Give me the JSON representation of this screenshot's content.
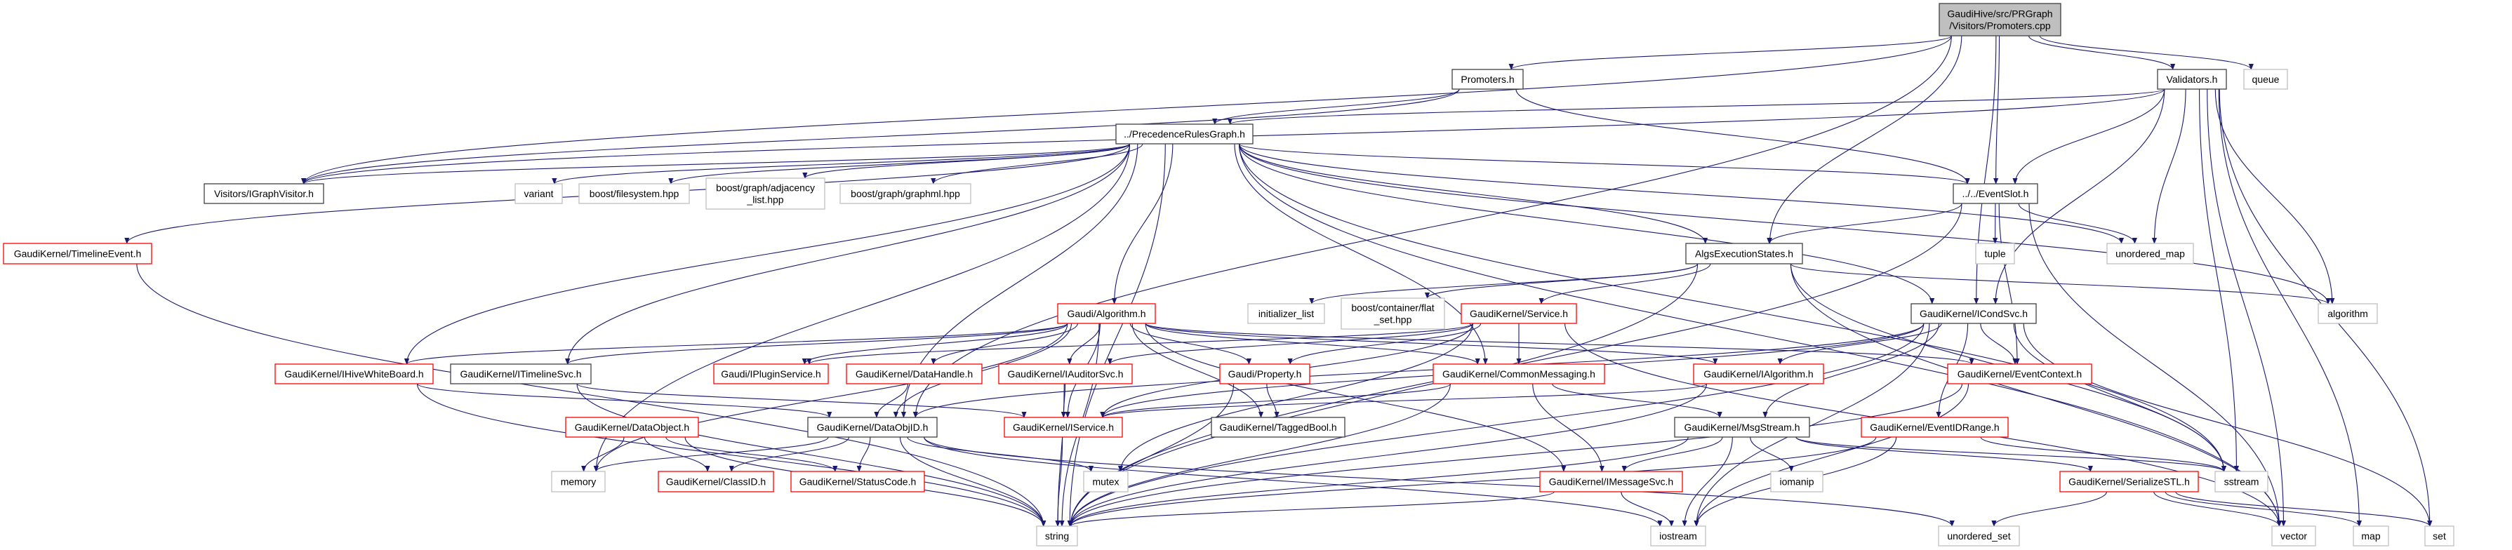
{
  "colors": {
    "edge": "#191970",
    "root_fill": "#bfbfbf",
    "truncated_border": "#ff0000",
    "documented_border": "#404040",
    "system_border": "#bfbfbf"
  },
  "nodes": [
    {
      "id": "root",
      "lines": [
        "GaudiHive/src/PRGraph",
        "/Visitors/Promoters.cpp"
      ],
      "kind": "root"
    },
    {
      "id": "promoters",
      "lines": [
        "Promoters.h"
      ],
      "kind": "doc"
    },
    {
      "id": "validators",
      "lines": [
        "Validators.h"
      ],
      "kind": "doc"
    },
    {
      "id": "queue",
      "lines": [
        "queue"
      ],
      "kind": "sys"
    },
    {
      "id": "prg",
      "lines": [
        "../PrecedenceRulesGraph.h"
      ],
      "kind": "doc"
    },
    {
      "id": "igraphvisitor",
      "lines": [
        "Visitors/IGraphVisitor.h"
      ],
      "kind": "doc"
    },
    {
      "id": "variant",
      "lines": [
        "variant"
      ],
      "kind": "sys"
    },
    {
      "id": "filesystem",
      "lines": [
        "boost/filesystem.hpp"
      ],
      "kind": "sys"
    },
    {
      "id": "adjacency",
      "lines": [
        "boost/graph/adjacency",
        "_list.hpp"
      ],
      "kind": "sys"
    },
    {
      "id": "graphml",
      "lines": [
        "boost/graph/graphml.hpp"
      ],
      "kind": "sys"
    },
    {
      "id": "eventslot",
      "lines": [
        "../../EventSlot.h"
      ],
      "kind": "doc"
    },
    {
      "id": "algsexec",
      "lines": [
        "AlgsExecutionStates.h"
      ],
      "kind": "doc"
    },
    {
      "id": "tuple",
      "lines": [
        "tuple"
      ],
      "kind": "sys"
    },
    {
      "id": "unordered_map",
      "lines": [
        "unordered_map"
      ],
      "kind": "sys"
    },
    {
      "id": "algorithm",
      "lines": [
        "algorithm"
      ],
      "kind": "sys"
    },
    {
      "id": "timelineevent",
      "lines": [
        "GaudiKernel/TimelineEvent.h"
      ],
      "kind": "trunc"
    },
    {
      "id": "gaudialgorithm",
      "lines": [
        "Gaudi/Algorithm.h"
      ],
      "kind": "trunc"
    },
    {
      "id": "initializer_list",
      "lines": [
        "initializer_list"
      ],
      "kind": "sys"
    },
    {
      "id": "flat_set",
      "lines": [
        "boost/container/flat",
        "_set.hpp"
      ],
      "kind": "sys"
    },
    {
      "id": "service",
      "lines": [
        "GaudiKernel/Service.h"
      ],
      "kind": "trunc"
    },
    {
      "id": "icondsvc",
      "lines": [
        "GaudiKernel/ICondSvc.h"
      ],
      "kind": "doc"
    },
    {
      "id": "ihivewhiteboard",
      "lines": [
        "GaudiKernel/IHiveWhiteBoard.h"
      ],
      "kind": "trunc"
    },
    {
      "id": "itimelinesvc",
      "lines": [
        "GaudiKernel/ITimelineSvc.h"
      ],
      "kind": "doc"
    },
    {
      "id": "ipluginservice",
      "lines": [
        "Gaudi/IPluginService.h"
      ],
      "kind": "trunc"
    },
    {
      "id": "datahandle",
      "lines": [
        "GaudiKernel/DataHandle.h"
      ],
      "kind": "trunc"
    },
    {
      "id": "iauditorsvc",
      "lines": [
        "GaudiKernel/IAuditorSvc.h"
      ],
      "kind": "trunc"
    },
    {
      "id": "property",
      "lines": [
        "Gaudi/Property.h"
      ],
      "kind": "trunc"
    },
    {
      "id": "commonmessaging",
      "lines": [
        "GaudiKernel/CommonMessaging.h"
      ],
      "kind": "trunc"
    },
    {
      "id": "ialgorithm",
      "lines": [
        "GaudiKernel/IAlgorithm.h"
      ],
      "kind": "trunc"
    },
    {
      "id": "eventcontext",
      "lines": [
        "GaudiKernel/EventContext.h"
      ],
      "kind": "trunc"
    },
    {
      "id": "dataobject",
      "lines": [
        "GaudiKernel/DataObject.h"
      ],
      "kind": "trunc"
    },
    {
      "id": "dataobjid",
      "lines": [
        "GaudiKernel/DataObjID.h"
      ],
      "kind": "doc"
    },
    {
      "id": "iservice",
      "lines": [
        "GaudiKernel/IService.h"
      ],
      "kind": "trunc"
    },
    {
      "id": "taggedbool",
      "lines": [
        "GaudiKernel/TaggedBool.h"
      ],
      "kind": "doc"
    },
    {
      "id": "msgstream",
      "lines": [
        "GaudiKernel/MsgStream.h"
      ],
      "kind": "doc"
    },
    {
      "id": "eventidrange",
      "lines": [
        "GaudiKernel/EventIDRange.h"
      ],
      "kind": "trunc"
    },
    {
      "id": "memory",
      "lines": [
        "memory"
      ],
      "kind": "sys"
    },
    {
      "id": "classid",
      "lines": [
        "GaudiKernel/ClassID.h"
      ],
      "kind": "trunc"
    },
    {
      "id": "statuscode",
      "lines": [
        "GaudiKernel/StatusCode.h"
      ],
      "kind": "trunc"
    },
    {
      "id": "mutex",
      "lines": [
        "mutex"
      ],
      "kind": "sys"
    },
    {
      "id": "imessagesvc",
      "lines": [
        "GaudiKernel/IMessageSvc.h"
      ],
      "kind": "trunc"
    },
    {
      "id": "iomanip",
      "lines": [
        "iomanip"
      ],
      "kind": "sys"
    },
    {
      "id": "serializestl",
      "lines": [
        "GaudiKernel/SerializeSTL.h"
      ],
      "kind": "trunc"
    },
    {
      "id": "sstream",
      "lines": [
        "sstream"
      ],
      "kind": "sys"
    },
    {
      "id": "string",
      "lines": [
        "string"
      ],
      "kind": "sys"
    },
    {
      "id": "iostream",
      "lines": [
        "iostream"
      ],
      "kind": "sys"
    },
    {
      "id": "unordered_set",
      "lines": [
        "unordered_set"
      ],
      "kind": "sys"
    },
    {
      "id": "vector",
      "lines": [
        "vector"
      ],
      "kind": "sys"
    },
    {
      "id": "map",
      "lines": [
        "map"
      ],
      "kind": "sys"
    },
    {
      "id": "set",
      "lines": [
        "set"
      ],
      "kind": "sys"
    }
  ],
  "edges": [
    [
      "root",
      "promoters"
    ],
    [
      "root",
      "validators"
    ],
    [
      "root",
      "queue"
    ],
    [
      "root",
      "algsexec"
    ],
    [
      "root",
      "eventslot"
    ],
    [
      "root",
      "icondsvc"
    ],
    [
      "root",
      "dataobjid"
    ],
    [
      "root",
      "igraphvisitor"
    ],
    [
      "promoters",
      "prg"
    ],
    [
      "promoters",
      "eventslot"
    ],
    [
      "promoters",
      "igraphvisitor"
    ],
    [
      "validators",
      "prg"
    ],
    [
      "validators",
      "igraphvisitor"
    ],
    [
      "validators",
      "eventslot"
    ],
    [
      "validators",
      "unordered_map"
    ],
    [
      "validators",
      "algorithm"
    ],
    [
      "validators",
      "sstream"
    ],
    [
      "validators",
      "vector"
    ],
    [
      "validators",
      "map"
    ],
    [
      "validators",
      "set"
    ],
    [
      "validators",
      "icondsvc"
    ],
    [
      "prg",
      "igraphvisitor"
    ],
    [
      "prg",
      "variant"
    ],
    [
      "prg",
      "filesystem"
    ],
    [
      "prg",
      "adjacency"
    ],
    [
      "prg",
      "graphml"
    ],
    [
      "prg",
      "timelineevent"
    ],
    [
      "prg",
      "ihivewhiteboard"
    ],
    [
      "prg",
      "itimelinesvc"
    ],
    [
      "prg",
      "memory"
    ],
    [
      "prg",
      "dataobjid"
    ],
    [
      "prg",
      "gaudialgorithm"
    ],
    [
      "prg",
      "commonmessaging"
    ],
    [
      "prg",
      "eventslot"
    ],
    [
      "prg",
      "algsexec"
    ],
    [
      "prg",
      "unordered_map"
    ],
    [
      "prg",
      "algorithm"
    ],
    [
      "prg",
      "vector"
    ],
    [
      "prg",
      "sstream"
    ],
    [
      "prg",
      "icondsvc"
    ],
    [
      "prg",
      "string"
    ],
    [
      "eventslot",
      "algsexec"
    ],
    [
      "eventslot",
      "tuple"
    ],
    [
      "eventslot",
      "unordered_map"
    ],
    [
      "eventslot",
      "eventcontext"
    ],
    [
      "eventslot",
      "vector"
    ],
    [
      "eventslot",
      "string"
    ],
    [
      "algsexec",
      "initializer_list"
    ],
    [
      "algsexec",
      "flat_set"
    ],
    [
      "algsexec",
      "service"
    ],
    [
      "algsexec",
      "algorithm"
    ],
    [
      "algsexec",
      "vector"
    ],
    [
      "algsexec",
      "sstream"
    ],
    [
      "algsexec",
      "string"
    ],
    [
      "gaudialgorithm",
      "datahandle"
    ],
    [
      "gaudialgorithm",
      "iauditorsvc"
    ],
    [
      "gaudialgorithm",
      "property"
    ],
    [
      "gaudialgorithm",
      "commonmessaging"
    ],
    [
      "gaudialgorithm",
      "iservice"
    ],
    [
      "gaudialgorithm",
      "taggedbool"
    ],
    [
      "gaudialgorithm",
      "ihivewhiteboard"
    ],
    [
      "gaudialgorithm",
      "itimelinesvc"
    ],
    [
      "gaudialgorithm",
      "ipluginservice"
    ],
    [
      "gaudialgorithm",
      "dataobjid"
    ],
    [
      "gaudialgorithm",
      "imessagesvc"
    ],
    [
      "gaudialgorithm",
      "eventcontext"
    ],
    [
      "gaudialgorithm",
      "ialgorithm"
    ],
    [
      "gaudialgorithm",
      "string"
    ],
    [
      "gaudialgorithm",
      "memory"
    ],
    [
      "service",
      "ipluginservice"
    ],
    [
      "service",
      "property"
    ],
    [
      "service",
      "commonmessaging"
    ],
    [
      "service",
      "iservice"
    ],
    [
      "service",
      "iauditorsvc"
    ],
    [
      "service",
      "mutex"
    ],
    [
      "service",
      "vector"
    ],
    [
      "icondsvc",
      "ialgorithm"
    ],
    [
      "icondsvc",
      "eventcontext"
    ],
    [
      "icondsvc",
      "eventidrange"
    ],
    [
      "icondsvc",
      "dataobjid"
    ],
    [
      "icondsvc",
      "iservice"
    ],
    [
      "icondsvc",
      "sstream"
    ],
    [
      "icondsvc",
      "set"
    ],
    [
      "icondsvc",
      "string"
    ],
    [
      "icondsvc",
      "iostream"
    ],
    [
      "icondsvc",
      "msgstream"
    ],
    [
      "ihivewhiteboard",
      "dataobjid"
    ],
    [
      "ihivewhiteboard",
      "string"
    ],
    [
      "itimelinesvc",
      "iservice"
    ],
    [
      "itimelinesvc",
      "string"
    ],
    [
      "datahandle",
      "dataobjid"
    ],
    [
      "iauditorsvc",
      "iservice"
    ],
    [
      "iauditorsvc",
      "string"
    ],
    [
      "property",
      "taggedbool"
    ],
    [
      "property",
      "string"
    ],
    [
      "commonmessaging",
      "iservice"
    ],
    [
      "commonmessaging",
      "imessagesvc"
    ],
    [
      "commonmessaging",
      "msgstream"
    ],
    [
      "commonmessaging",
      "string"
    ],
    [
      "ialgorithm",
      "iservice"
    ],
    [
      "ialgorithm",
      "string"
    ],
    [
      "eventcontext",
      "string"
    ],
    [
      "eventcontext",
      "iostream"
    ],
    [
      "dataobject",
      "memory"
    ],
    [
      "dataobject",
      "classid"
    ],
    [
      "dataobject",
      "statuscode"
    ],
    [
      "dataobject",
      "string"
    ],
    [
      "dataobjid",
      "classid"
    ],
    [
      "dataobjid",
      "statuscode"
    ],
    [
      "dataobjid",
      "mutex"
    ],
    [
      "dataobjid",
      "string"
    ],
    [
      "dataobjid",
      "iostream"
    ],
    [
      "dataobjid",
      "unordered_set"
    ],
    [
      "dataobjid",
      "memory"
    ],
    [
      "iservice",
      "string"
    ],
    [
      "msgstream",
      "imessagesvc"
    ],
    [
      "msgstream",
      "iomanip"
    ],
    [
      "msgstream",
      "string"
    ],
    [
      "msgstream",
      "serializestl"
    ],
    [
      "msgstream",
      "sstream"
    ],
    [
      "msgstream",
      "iostream"
    ],
    [
      "eventidrange",
      "sstream"
    ],
    [
      "eventidrange",
      "string"
    ],
    [
      "eventidrange",
      "iostream"
    ],
    [
      "imessagesvc",
      "string"
    ],
    [
      "imessagesvc",
      "iostream"
    ],
    [
      "serializestl",
      "unordered_set"
    ],
    [
      "serializestl",
      "vector"
    ],
    [
      "serializestl",
      "map"
    ],
    [
      "serializestl",
      "set"
    ],
    [
      "timelineevent",
      "string"
    ]
  ]
}
